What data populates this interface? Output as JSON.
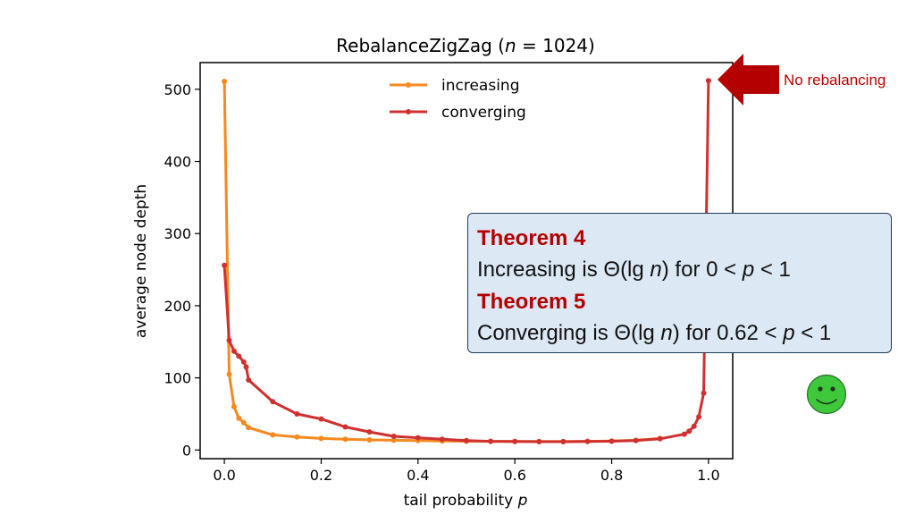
{
  "chart_data": {
    "type": "line",
    "title_prefix": "RebalanceZigZag (",
    "title_var": "n",
    "title_suffix": " = 1024)",
    "xlabel_prefix": "tail probability ",
    "xlabel_var": "p",
    "ylabel": "average node depth",
    "xlim": [
      -0.05,
      1.05
    ],
    "ylim": [
      -12,
      537
    ],
    "xticks": [
      0.0,
      0.2,
      0.4,
      0.6,
      0.8,
      1.0
    ],
    "xtick_labels": [
      "0.0",
      "0.2",
      "0.4",
      "0.6",
      "0.8",
      "1.0"
    ],
    "yticks": [
      0,
      100,
      200,
      300,
      400,
      500
    ],
    "ytick_labels": [
      "0",
      "100",
      "200",
      "300",
      "400",
      "500"
    ],
    "legend_position": "upper-center",
    "series": [
      {
        "name": "increasing",
        "color": "#f5891f",
        "x": [
          0.0,
          0.01,
          0.02,
          0.03,
          0.04,
          0.05,
          0.1,
          0.15,
          0.2,
          0.25,
          0.3,
          0.35,
          0.4,
          0.45,
          0.5,
          0.55,
          0.6,
          0.65,
          0.7,
          0.75,
          0.8,
          0.85,
          0.9
        ],
        "y": [
          511,
          105,
          60,
          44,
          38,
          31,
          21,
          18,
          16,
          15,
          14,
          13.5,
          13,
          12.5,
          12.2,
          12,
          11.8,
          11.8,
          11.8,
          12,
          12.5,
          13.5,
          16
        ]
      },
      {
        "name": "converging",
        "color": "#d03030",
        "x": [
          0.0,
          0.01,
          0.02,
          0.03,
          0.04,
          0.045,
          0.05,
          0.1,
          0.15,
          0.2,
          0.25,
          0.3,
          0.35,
          0.4,
          0.45,
          0.5,
          0.55,
          0.6,
          0.65,
          0.7,
          0.75,
          0.8,
          0.85,
          0.9,
          0.95,
          0.96,
          0.97,
          0.98,
          0.99,
          1.0
        ],
        "y": [
          256,
          152,
          137,
          130,
          122,
          115,
          97,
          67,
          50,
          43,
          32,
          25,
          19,
          17,
          15,
          13,
          12,
          11.8,
          11.5,
          11.6,
          11.8,
          12.2,
          13,
          15.5,
          22,
          26,
          33,
          46,
          79,
          512
        ]
      }
    ]
  },
  "annotation": {
    "label": "No rebalancing",
    "color": "#b50000"
  },
  "theorems": [
    {
      "title": "Theorem 4",
      "statement_pre": "Increasing is Θ(lg ",
      "statement_var": "n",
      "statement_mid": ") for 0 < ",
      "statement_var2": "p",
      "statement_post": " < 1"
    },
    {
      "title": "Theorem 5",
      "statement_pre": "Converging is Θ(lg ",
      "statement_var": "n",
      "statement_mid": ") for 0.62 < ",
      "statement_var2": "p",
      "statement_post": " < 1"
    }
  ],
  "smiley_color": "#3fc83c"
}
